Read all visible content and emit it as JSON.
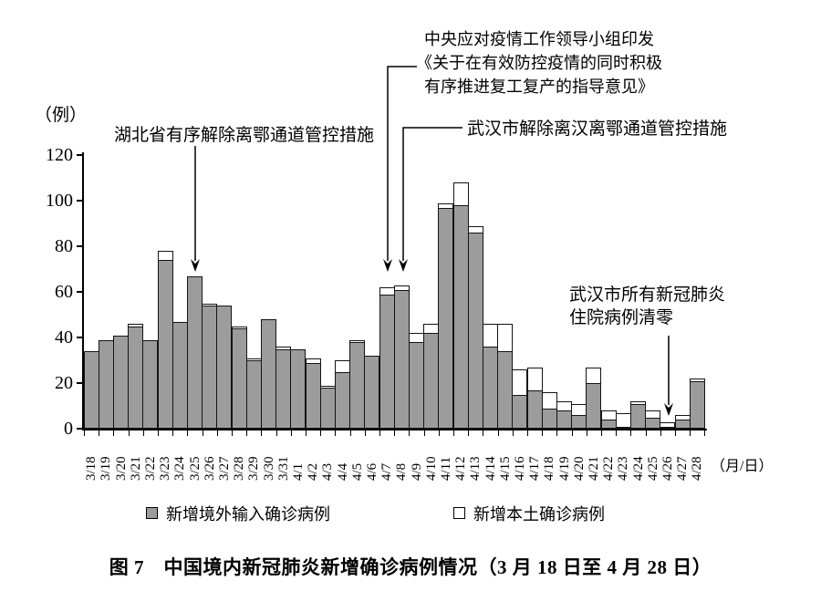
{
  "y_axis": {
    "unit_label": "（例）",
    "ticks": [
      0,
      20,
      40,
      60,
      80,
      100,
      120
    ]
  },
  "x_axis": {
    "unit_label": "（月/日）"
  },
  "legend": [
    {
      "label": "新增境外输入确诊病例",
      "swatch": "#9c9c9c"
    },
    {
      "label": "新增本土确诊病例",
      "swatch": "#ffffff"
    }
  ],
  "annotations": {
    "hubei": {
      "text": "湖北省有序解除离鄂通道管控措施",
      "points_to": "3/25"
    },
    "central_line1": "中央应对疫情工作领导小组印发",
    "central_line2": "《关于在有效防控疫情的同时积极",
    "central_line3": "有序推进复工复产的指导意见》",
    "central_points_to": "4/7",
    "wuhan_channel": {
      "text": "武汉市解除离汉离鄂通道管控措施",
      "points_to": "4/8"
    },
    "wuhan_clear_line1": "武汉市所有新冠肺炎",
    "wuhan_clear_line2": "住院病例清零",
    "wuhan_clear_points_to": "4/26"
  },
  "caption": "图 7　中国境内新冠肺炎新增确诊病例情况（3 月 18 日至 4 月 28 日）",
  "colors": {
    "bar_imported": "#9c9c9c",
    "bar_local": "#ffffff",
    "bar_border": "#141414",
    "axis": "#000000"
  },
  "chart_data": {
    "type": "bar",
    "stacked": true,
    "grid": false,
    "legend_position": "bottom",
    "title": "图 7　中国境内新冠肺炎新增确诊病例情况（3 月 18 日至 4 月 28 日）",
    "ylabel": "（例）",
    "xlabel": "（月/日）",
    "ylim": [
      0,
      120
    ],
    "yticks": [
      0,
      20,
      40,
      60,
      80,
      100,
      120
    ],
    "categories": [
      "3/18",
      "3/19",
      "3/20",
      "3/21",
      "3/22",
      "3/23",
      "3/24",
      "3/25",
      "3/26",
      "3/27",
      "3/28",
      "3/29",
      "3/30",
      "3/31",
      "4/1",
      "4/2",
      "4/3",
      "4/4",
      "4/5",
      "4/6",
      "4/7",
      "4/8",
      "4/9",
      "4/10",
      "4/11",
      "4/12",
      "4/13",
      "4/14",
      "4/15",
      "4/16",
      "4/17",
      "4/18",
      "4/19",
      "4/20",
      "4/21",
      "4/22",
      "4/23",
      "4/24",
      "4/25",
      "4/26",
      "4/27",
      "4/28"
    ],
    "series": [
      {
        "name": "新增境外输入确诊病例",
        "values": [
          34,
          39,
          41,
          45,
          39,
          74,
          47,
          67,
          54,
          54,
          44,
          30,
          48,
          35,
          35,
          29,
          18,
          25,
          38,
          32,
          59,
          61,
          38,
          42,
          97,
          98,
          86,
          36,
          34,
          15,
          17,
          9,
          8,
          6,
          20,
          4,
          1,
          11,
          5,
          1,
          4,
          21
        ]
      },
      {
        "name": "新增本土确诊病例",
        "values": [
          0,
          0,
          0,
          1,
          0,
          4,
          0,
          0,
          1,
          0,
          1,
          1,
          0,
          1,
          0,
          2,
          1,
          5,
          1,
          0,
          3,
          2,
          4,
          4,
          2,
          10,
          3,
          10,
          12,
          11,
          10,
          7,
          4,
          5,
          7,
          4,
          6,
          1,
          3,
          2,
          2,
          1
        ]
      }
    ]
  }
}
